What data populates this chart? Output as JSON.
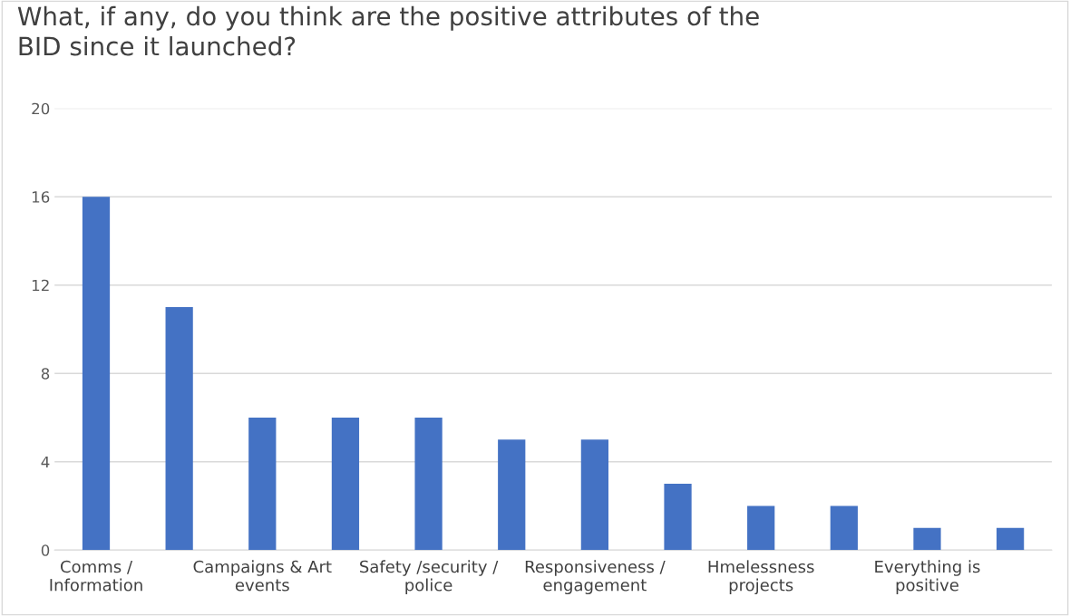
{
  "chart_data": {
    "type": "bar",
    "title": "What, if any, do you think are the positive attributes of the\nBID since it launched?",
    "categories": [
      "Comms /\nInformation",
      null,
      "Campaigns & Art\nevents",
      null,
      "Safety /security /\npolice",
      null,
      "Responsiveness /\nengagement",
      null,
      "Hmelessness\nprojects",
      null,
      "Everything is\npositive",
      null
    ],
    "values": [
      16,
      11,
      6,
      6,
      6,
      5,
      5,
      3,
      2,
      2,
      1,
      1
    ],
    "color": "#4472c4",
    "ylim": [
      0,
      20
    ],
    "yticks": [
      0,
      4,
      8,
      12,
      16,
      20
    ],
    "grid": "y"
  }
}
